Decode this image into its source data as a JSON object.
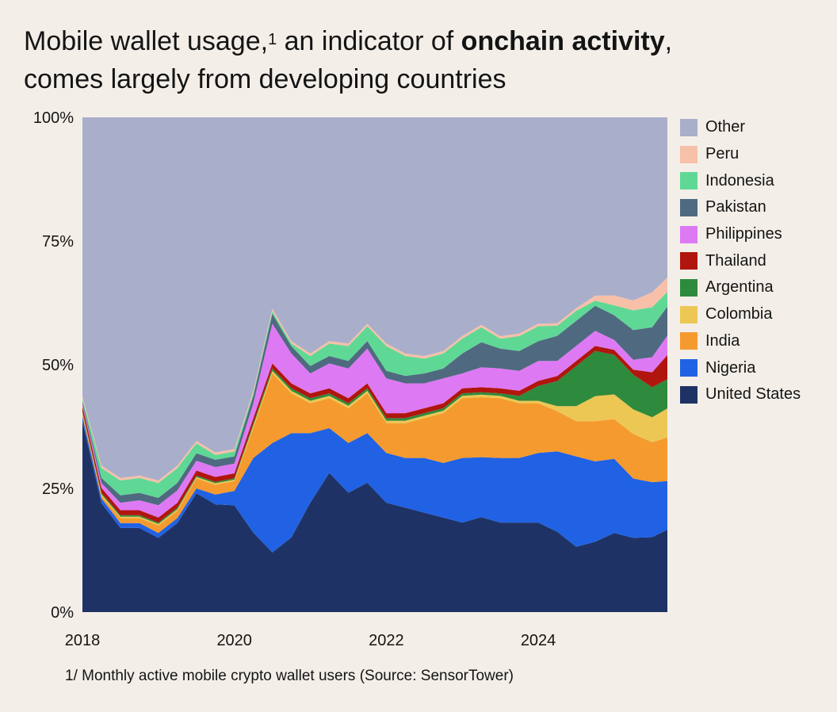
{
  "title": {
    "part1": "Mobile wallet usage,",
    "footnote_mark": "1",
    "part2": " an indicator of ",
    "bold": "onchain activity",
    "part3": ",",
    "line2": "comes largely from developing countries"
  },
  "footnote": "1/ Monthly active mobile crypto wallet users (Source: SensorTower)",
  "colors": {
    "background": "#f3efe8",
    "Other": "#a9aecb",
    "Peru": "#f7c0a8",
    "Indonesia": "#5fd896",
    "Pakistan": "#4f6a80",
    "Philippines": "#de79f4",
    "Thailand": "#b0160e",
    "Argentina": "#2e8a3c",
    "Colombia": "#ecc754",
    "India": "#f59a2e",
    "Nigeria": "#2062e3",
    "United States": "#1f3266"
  },
  "chart_data": {
    "type": "area",
    "stacked": true,
    "percent": true,
    "x": [
      2018.0,
      2018.25,
      2018.5,
      2018.75,
      2019.0,
      2019.25,
      2019.5,
      2019.75,
      2020.0,
      2020.25,
      2020.5,
      2020.75,
      2021.0,
      2021.25,
      2021.5,
      2021.75,
      2022.0,
      2022.25,
      2022.5,
      2022.75,
      2023.0,
      2023.25,
      2023.5,
      2023.75,
      2024.0,
      2024.25,
      2024.5,
      2024.75,
      2025.0,
      2025.25,
      2025.5,
      2025.7
    ],
    "xlim": [
      2018.0,
      2025.7
    ],
    "ylim": [
      0,
      100
    ],
    "x_ticks": [
      "2018",
      "2020",
      "2022",
      "2024"
    ],
    "y_ticks": [
      "0%",
      "25%",
      "50%",
      "75%",
      "100%"
    ],
    "series": [
      {
        "name": "United States",
        "values": [
          39,
          22,
          17,
          17,
          15,
          18,
          24,
          22,
          22,
          16,
          12,
          15,
          22,
          28,
          24,
          26,
          22,
          21,
          20,
          19,
          18,
          19,
          18,
          18,
          18,
          16,
          13,
          14,
          16,
          15,
          15,
          17
        ]
      },
      {
        "name": "Nigeria",
        "values": [
          1,
          1,
          1,
          1,
          1,
          1,
          1,
          2,
          3,
          15,
          22,
          21,
          14,
          9,
          10,
          10,
          10,
          10,
          11,
          11,
          13,
          12,
          13,
          13,
          14,
          16,
          18,
          16,
          15,
          12,
          11,
          10
        ]
      },
      {
        "name": "India",
        "values": [
          0.5,
          0.5,
          1,
          1,
          1.5,
          1.5,
          2,
          2,
          2,
          6,
          14,
          8,
          6,
          6,
          7,
          8,
          6,
          7,
          8,
          10,
          12,
          12,
          12,
          11,
          10,
          8,
          7,
          8,
          8,
          9,
          8,
          9
        ]
      },
      {
        "name": "Colombia",
        "values": [
          0.3,
          0.3,
          0.3,
          0.3,
          0.3,
          0.3,
          0.3,
          0.3,
          0.3,
          0.5,
          0.5,
          0.5,
          0.5,
          0.5,
          0.5,
          0.5,
          0.5,
          0.5,
          0.5,
          0.5,
          0.5,
          0.5,
          0.5,
          0.5,
          0.5,
          1,
          3,
          5,
          5,
          5,
          5,
          6
        ]
      },
      {
        "name": "Argentina",
        "values": [
          0.3,
          0.3,
          0.3,
          0.3,
          0.3,
          0.3,
          0.3,
          0.3,
          0.3,
          0.5,
          0.5,
          0.5,
          0.5,
          0.5,
          0.5,
          0.5,
          0.5,
          0.5,
          0.5,
          0.5,
          0.5,
          0.5,
          0.5,
          1,
          3,
          5,
          8,
          9,
          8,
          7,
          6,
          6
        ]
      },
      {
        "name": "Thailand",
        "values": [
          1,
          1,
          1,
          1,
          1,
          1,
          1,
          1,
          1,
          1,
          1,
          1,
          1,
          1,
          1,
          1,
          1,
          1,
          1,
          1,
          1,
          1,
          1,
          1,
          1,
          1,
          1,
          1,
          1,
          1,
          3,
          5
        ]
      },
      {
        "name": "Philippines",
        "values": [
          0.5,
          1,
          1.5,
          2,
          2.5,
          2.5,
          2,
          2,
          2,
          3,
          8,
          6,
          4,
          5,
          6,
          7,
          7,
          6,
          5,
          5,
          3,
          4,
          4,
          4,
          4,
          3,
          3,
          3,
          2,
          2,
          3,
          4
        ]
      },
      {
        "name": "Pakistan",
        "values": [
          0.5,
          1,
          1.5,
          1.5,
          1.5,
          1.5,
          1.5,
          1.5,
          1.5,
          1.5,
          2,
          1.5,
          1.5,
          1.5,
          1.5,
          1.5,
          1.5,
          1.5,
          2,
          2,
          4,
          5,
          4,
          4,
          4,
          5,
          5,
          5,
          5,
          6,
          6,
          6
        ]
      },
      {
        "name": "Indonesia",
        "values": [
          0.5,
          2,
          3,
          3,
          3,
          3,
          2,
          1,
          1,
          0.5,
          0.5,
          0.5,
          2,
          2.5,
          3,
          3,
          5,
          4,
          3,
          3,
          3,
          3,
          2,
          3,
          3,
          2,
          2,
          1,
          2,
          4,
          4,
          3
        ]
      },
      {
        "name": "Peru",
        "values": [
          0.5,
          0.5,
          0.5,
          0.5,
          0.5,
          0.5,
          0.5,
          0.5,
          0.5,
          0.5,
          0.5,
          0.5,
          0.5,
          0.5,
          0.5,
          0.5,
          0.5,
          0.5,
          0.5,
          0.5,
          0.5,
          0.5,
          0.5,
          0.5,
          0.5,
          0.5,
          0.5,
          1,
          2,
          2,
          3,
          3
        ]
      },
      {
        "name": "Other",
        "values": [
          57.1,
          70.4,
          72.9,
          72.4,
          73.4,
          70.4,
          65.4,
          68.4,
          68.4,
          55.0,
          38.5,
          45.0,
          47.5,
          45.0,
          45.5,
          41.5,
          45.5,
          47.5,
          48.0,
          47.0,
          44.0,
          41.5,
          44.0,
          43.5,
          41.5,
          41.0,
          38.0,
          35.5,
          36.0,
          37.0,
          35.0,
          33.0
        ]
      }
    ]
  }
}
